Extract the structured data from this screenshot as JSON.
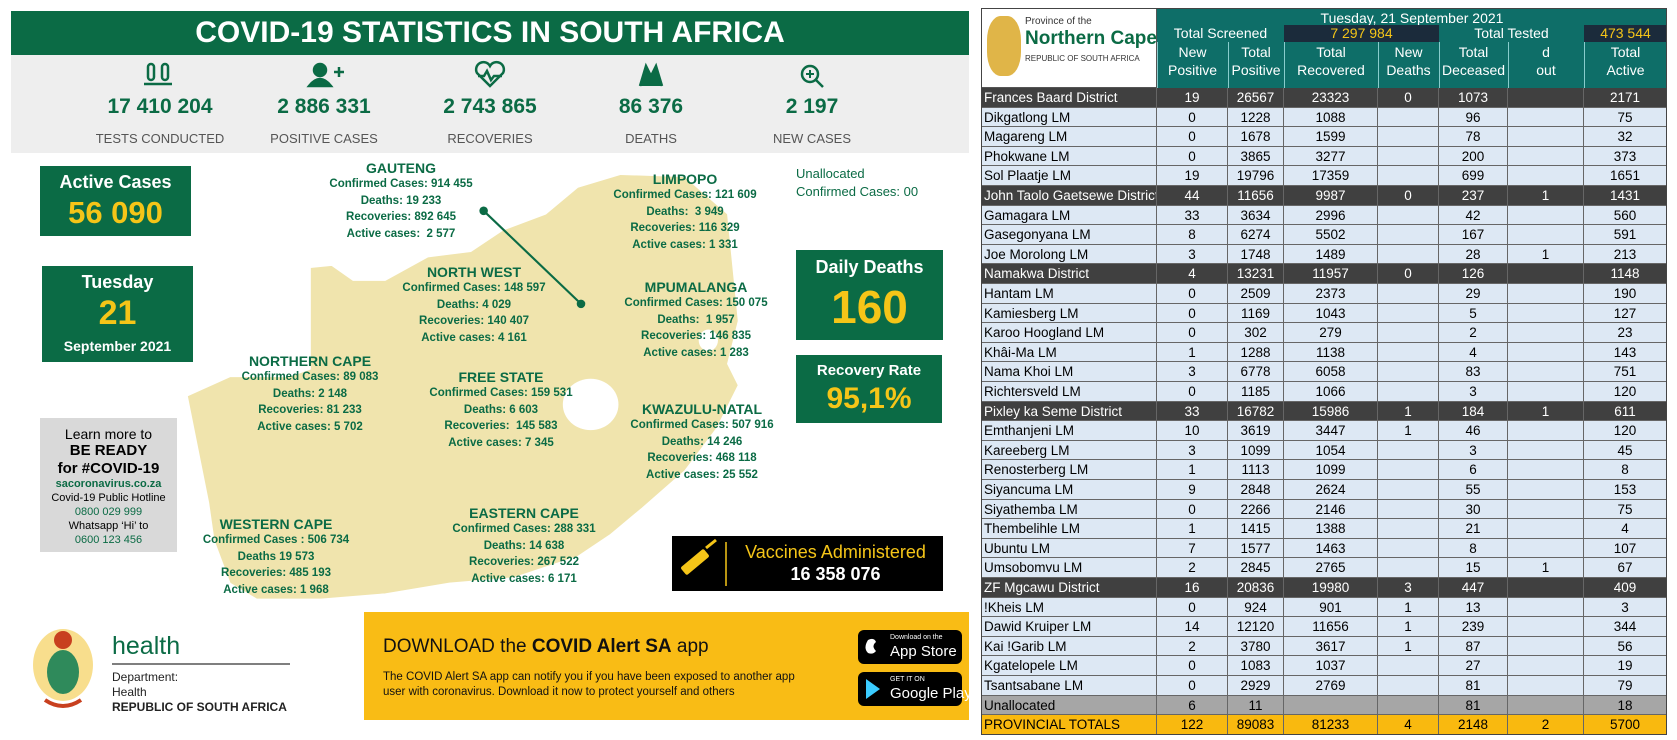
{
  "header": {
    "title": "COVID-19 STATISTICS IN SOUTH AFRICA"
  },
  "stats": [
    {
      "value": "17 410 204",
      "label": "TESTS CONDUCTED"
    },
    {
      "value": "2 886 331",
      "label": "POSITIVE CASES"
    },
    {
      "value": "2 743 865",
      "label": "RECOVERIES"
    },
    {
      "value": "86 376",
      "label": "DEATHS"
    },
    {
      "value": "2 197",
      "label": "NEW CASES"
    }
  ],
  "active_cases": {
    "label": "Active Cases",
    "value": "56 090"
  },
  "date": {
    "weekday": "Tuesday",
    "day": "21",
    "month_year": "September 2021"
  },
  "learn_more": [
    "Learn more to",
    "BE READY",
    "for #COVID-19",
    "sacoronavirus.co.za",
    "Covid-19 Public Hotline",
    "0800 029 999",
    "Whatsapp ‘Hi’ to",
    "0600 123 456"
  ],
  "provinces": [
    {
      "name": "GAUTENG",
      "lines": [
        "Confirmed Cases: 914 455",
        "Deaths: 19 233",
        "Recoveries: 892 645",
        "Active cases:  2 577"
      ]
    },
    {
      "name": "LIMPOPO",
      "lines": [
        "Confirmed Cases: 121 609",
        "Deaths:  3 949",
        "Recoveries: 116 329",
        "Active cases: 1 331"
      ]
    },
    {
      "name": "NORTH WEST",
      "lines": [
        "Confirmed Cases: 148 597",
        "Deaths: 4 029",
        "Recoveries: 140 407",
        "Active cases: 4 161"
      ]
    },
    {
      "name": "MPUMALANGA",
      "lines": [
        "Confirmed Cases: 150 075",
        "Deaths:  1 957",
        "Recoveries: 146 835",
        "Active cases: 1 283"
      ]
    },
    {
      "name": "NORTHERN CAPE",
      "lines": [
        "Confirmed Cases: 89 083",
        "Deaths: 2 148",
        "Recoveries: 81 233",
        "Active cases: 5 702"
      ]
    },
    {
      "name": "FREE STATE",
      "lines": [
        "Confirmed Cases: 159 531",
        "Deaths: 6 603",
        "Recoveries:  145 583",
        "Active cases: 7 345"
      ]
    },
    {
      "name": "KWAZULU-NATAL",
      "lines": [
        "Confirmed Cases: 507 916",
        "Deaths: 14 246",
        "Recoveries: 468 118",
        "Active cases: 25 552"
      ]
    },
    {
      "name": "EASTERN CAPE",
      "lines": [
        "Confirmed Cases: 288 331",
        "Deaths: 14 638",
        "Recoveries: 267 522",
        "Active cases: 6 171"
      ]
    },
    {
      "name": "WESTERN CAPE",
      "lines": [
        "Confirmed Cases : 506 734",
        "Deaths 19 573",
        "Recoveries: 485 193",
        "Active cases: 1 968"
      ]
    }
  ],
  "unallocated": [
    "Unallocated",
    "Confirmed Cases: 00"
  ],
  "daily_deaths": {
    "label": "Daily Deaths",
    "value": "160"
  },
  "recovery_rate": {
    "label": "Recovery Rate",
    "value": "95,1%"
  },
  "vaccines": {
    "label": "Vaccines Administered",
    "value": "16 358 076"
  },
  "health": {
    "name": "health",
    "lines": [
      "Department:",
      "Health",
      "REPUBLIC OF SOUTH AFRICA"
    ]
  },
  "download": {
    "title": [
      "DOWNLOAD the",
      "COVID Alert SA",
      "app"
    ],
    "text": "The COVID Alert SA app can notify you if you have been exposed to another app user with coronavirus. Download it now to protect yourself and others",
    "app_store": [
      "Download on the",
      "App Store"
    ],
    "google_play": [
      "GET IT ON",
      "Google Play"
    ]
  },
  "table": {
    "logo": [
      "Province of the",
      "Northern Cape",
      "REPUBLIC OF SOUTH AFRICA"
    ],
    "date": "Tuesday, 21 September 2021",
    "total_screened": {
      "label": "Total Screened",
      "value": "7 297 984"
    },
    "total_tested": {
      "label": "Total Tested",
      "value": "473 544"
    },
    "columns": [
      [
        "New",
        "Positive"
      ],
      [
        "Total",
        "Positive"
      ],
      [
        "Total",
        "Recovered"
      ],
      [
        "New",
        "Deaths"
      ],
      [
        "Total",
        "Deceased"
      ],
      [
        "d",
        "out"
      ],
      [
        "Total",
        "Active"
      ]
    ],
    "districts": [
      {
        "row": [
          "Frances Baard District",
          19,
          26567,
          23323,
          0,
          1073,
          null,
          2171
        ],
        "municipalities": [
          [
            "Dikgatlong LM",
            0,
            1228,
            1088,
            null,
            96,
            null,
            75
          ],
          [
            "Magareng LM",
            0,
            1678,
            1599,
            null,
            78,
            null,
            32
          ],
          [
            "Phokwane LM",
            0,
            3865,
            3277,
            null,
            200,
            null,
            373
          ],
          [
            "Sol Plaatje LM",
            19,
            19796,
            17359,
            null,
            699,
            null,
            1651
          ]
        ]
      },
      {
        "row": [
          "John Taolo Gaetsewe District",
          44,
          11656,
          9987,
          0,
          237,
          1,
          1431
        ],
        "municipalities": [
          [
            "Gamagara LM",
            33,
            3634,
            2996,
            null,
            42,
            null,
            560
          ],
          [
            "Gasegonyana LM",
            8,
            6274,
            5502,
            null,
            167,
            null,
            591
          ],
          [
            "Joe Morolong LM",
            3,
            1748,
            1489,
            null,
            28,
            1,
            213
          ]
        ]
      },
      {
        "row": [
          "Namakwa District",
          4,
          13231,
          11957,
          0,
          126,
          null,
          1148
        ],
        "municipalities": [
          [
            "Hantam LM",
            0,
            2509,
            2373,
            null,
            29,
            null,
            190
          ],
          [
            "Kamiesberg LM",
            0,
            1169,
            1043,
            null,
            5,
            null,
            127
          ],
          [
            "Karoo Hoogland LM",
            0,
            302,
            279,
            null,
            2,
            null,
            23
          ],
          [
            "Khâi-Ma LM",
            1,
            1288,
            1138,
            null,
            4,
            null,
            143
          ],
          [
            "Nama Khoi LM",
            3,
            6778,
            6058,
            null,
            83,
            null,
            751
          ],
          [
            "Richtersveld LM",
            0,
            1185,
            1066,
            null,
            3,
            null,
            120
          ]
        ]
      },
      {
        "row": [
          "Pixley ka Seme District",
          33,
          16782,
          15986,
          1,
          184,
          1,
          611
        ],
        "municipalities": [
          [
            "Emthanjeni LM",
            10,
            3619,
            3447,
            1,
            46,
            null,
            120
          ],
          [
            "Kareeberg LM",
            3,
            1099,
            1054,
            null,
            3,
            null,
            45
          ],
          [
            "Renosterberg LM",
            1,
            1113,
            1099,
            null,
            6,
            null,
            8
          ],
          [
            "Siyancuma LM",
            9,
            2848,
            2624,
            null,
            55,
            null,
            153
          ],
          [
            "Siyathemba LM",
            0,
            2266,
            2146,
            null,
            30,
            null,
            75
          ],
          [
            "Thembelihle LM",
            1,
            1415,
            1388,
            null,
            21,
            null,
            4
          ],
          [
            "Ubuntu LM",
            7,
            1577,
            1463,
            null,
            8,
            null,
            107
          ],
          [
            "Umsobomvu LM",
            2,
            2845,
            2765,
            null,
            15,
            1,
            67
          ]
        ]
      },
      {
        "row": [
          "ZF Mgcawu District",
          16,
          20836,
          19980,
          3,
          447,
          null,
          409
        ],
        "municipalities": [
          [
            "!Kheis LM",
            0,
            924,
            901,
            1,
            13,
            null,
            3
          ],
          [
            "Dawid Kruiper LM",
            14,
            12120,
            11656,
            1,
            239,
            null,
            344
          ],
          [
            "Kai !Garib LM",
            2,
            3780,
            3617,
            1,
            87,
            null,
            56
          ],
          [
            "Kgatelopele LM",
            0,
            1083,
            1037,
            null,
            27,
            null,
            19
          ],
          [
            "Tsantsabane LM",
            0,
            2929,
            2769,
            null,
            81,
            null,
            79
          ]
        ]
      }
    ],
    "unallocated": [
      "Unallocated",
      6,
      11,
      null,
      null,
      81,
      null,
      18
    ],
    "totals": [
      "PROVINCIAL TOTALS",
      122,
      89083,
      81233,
      4,
      2148,
      2,
      5700
    ]
  }
}
